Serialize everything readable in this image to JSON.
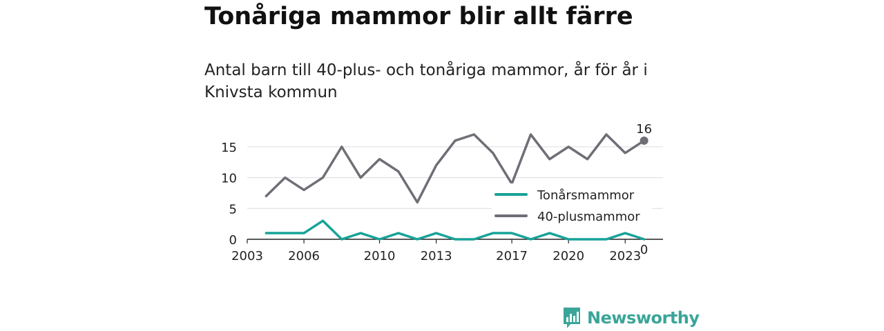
{
  "title": "Tonåriga mammor blir allt färre",
  "subtitle": "Antal barn till 40-plus- och tonåriga mammor, år för år i Knivsta kommun",
  "brand": {
    "name": "Newsworthy",
    "color": "#3aa59a"
  },
  "chart_data": {
    "type": "line",
    "x": [
      2004,
      2005,
      2006,
      2007,
      2008,
      2009,
      2010,
      2011,
      2012,
      2013,
      2014,
      2015,
      2016,
      2017,
      2018,
      2019,
      2020,
      2021,
      2022,
      2023,
      2024
    ],
    "series": [
      {
        "name": "Tonårsmammor",
        "color": "#17a398",
        "values": [
          1,
          1,
          1,
          3,
          0,
          1,
          0,
          1,
          0,
          1,
          0,
          0,
          1,
          1,
          0,
          1,
          0,
          0,
          0,
          1,
          0
        ],
        "end_label": "0"
      },
      {
        "name": "40-plusmammor",
        "color": "#6e6e76",
        "values": [
          7,
          10,
          8,
          10,
          15,
          10,
          13,
          11,
          6,
          12,
          16,
          17,
          14,
          9,
          17,
          13,
          15,
          13,
          17,
          14,
          16
        ],
        "end_label": "16"
      }
    ],
    "x_ticks": [
      "2003",
      "2006",
      "2010",
      "2013",
      "2017",
      "2020",
      "2023"
    ],
    "y_ticks": [
      "0",
      "5",
      "10",
      "15"
    ],
    "xlim": [
      2003,
      2025
    ],
    "ylim": [
      0,
      17
    ],
    "grid": "horizontal",
    "legend": "right",
    "xlabel": "",
    "ylabel": ""
  }
}
